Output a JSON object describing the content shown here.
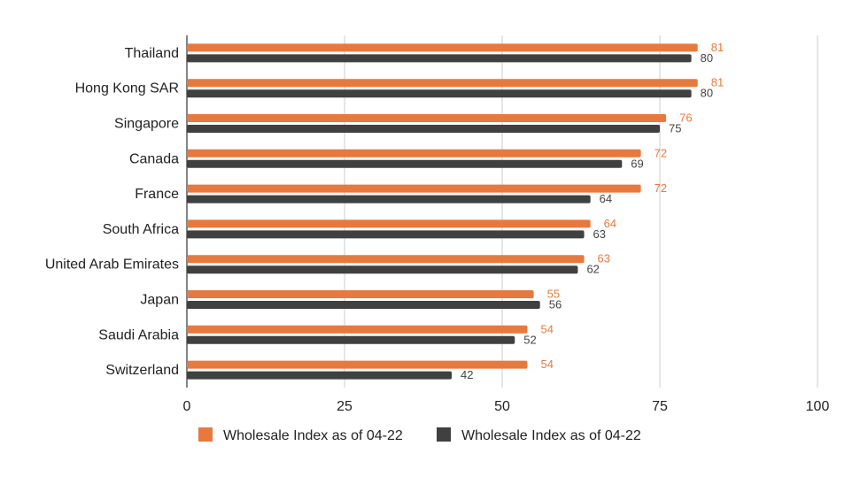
{
  "chart_data": {
    "type": "bar",
    "orientation": "horizontal",
    "categories": [
      "Thailand",
      "Hong Kong SAR",
      "Singapore",
      "Canada",
      "France",
      "South Africa",
      "United Arab Emirates",
      "Japan",
      "Saudi Arabia",
      "Switzerland"
    ],
    "series": [
      {
        "name": "Wholesale Index as of 04-22",
        "color": "#e8793e",
        "values": [
          81,
          81,
          76,
          72,
          72,
          64,
          63,
          55,
          54,
          54
        ]
      },
      {
        "name": "Wholesale Index as of 04-22",
        "color": "#404040",
        "values": [
          80,
          80,
          75,
          69,
          64,
          63,
          62,
          56,
          52,
          42
        ]
      }
    ],
    "xlim": [
      0,
      100
    ],
    "xticks": [
      0,
      25,
      50,
      75,
      100
    ],
    "grid": true,
    "legend": "bottom",
    "data_labels": true
  }
}
